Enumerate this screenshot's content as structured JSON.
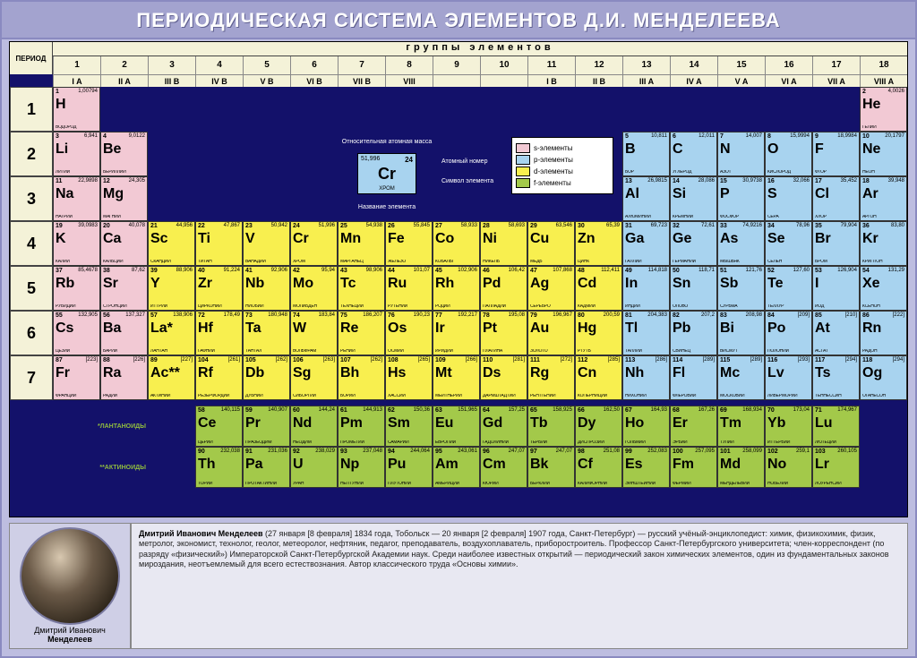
{
  "title": "ПЕРИОДИЧЕСКАЯ СИСТЕМА ЭЛЕМЕНТОВ Д.И. МЕНДЕЛЕЕВА",
  "groups_label": "группы элементов",
  "period_label": "ПЕРИОД",
  "colors": {
    "s": "#f2c9d4",
    "p": "#a8d3ef",
    "d": "#f8ef4f",
    "f": "#a3c94a",
    "bg_navy": "#13116a",
    "header_cream": "#f4f2d8",
    "frame_lilac": "#bdbde0"
  },
  "column_numbers": [
    "1",
    "2",
    "3",
    "4",
    "5",
    "6",
    "7",
    "8",
    "9",
    "10",
    "11",
    "12",
    "13",
    "14",
    "15",
    "16",
    "17",
    "18"
  ],
  "roman_headers": {
    "1": "I A",
    "2": "II A",
    "3": "III B",
    "4": "IV B",
    "5": "V B",
    "6": "VI B",
    "7": "VII B",
    "8": "VIII",
    "9": "",
    "10": "",
    "11": "I B",
    "12": "II B",
    "13": "III A",
    "14": "IV A",
    "15": "V A",
    "16": "VI A",
    "17": "VII A",
    "18": "VIII A"
  },
  "roman_row": {
    "1": 1,
    "2": 1,
    "3": 3,
    "4": 3,
    "5": 3,
    "6": 3,
    "7": 3,
    "8": 3,
    "9": 3,
    "10": 3,
    "11": 3,
    "12": 3,
    "13": 2,
    "14": 2,
    "15": 2,
    "16": 2,
    "17": 2,
    "18": 1
  },
  "periods": [
    "1",
    "2",
    "3",
    "4",
    "5",
    "6",
    "7"
  ],
  "legend_key": {
    "mass_label": "Относительная атомная масса",
    "num_label": "Атомный номер",
    "sym_label": "Символ элемента",
    "name_label": "Название элемента",
    "demo": {
      "num": "24",
      "mass": "51,996",
      "sym": "Cr",
      "name": "ХРОМ"
    }
  },
  "legend_blocks": [
    {
      "label": "s-элементы",
      "block": "s"
    },
    {
      "label": "p-элементы",
      "block": "p"
    },
    {
      "label": "d-элементы",
      "block": "d"
    },
    {
      "label": "f-элементы",
      "block": "f"
    }
  ],
  "f_labels": {
    "lan": "*ЛАНТАНОИДЫ",
    "act": "**АКТИНОИДЫ"
  },
  "elements": [
    {
      "p": 1,
      "g": 1,
      "n": "1",
      "m": "1,00794",
      "s": "H",
      "name": "ВОДОРОД",
      "b": "s"
    },
    {
      "p": 1,
      "g": 18,
      "n": "2",
      "m": "4,0026",
      "s": "He",
      "name": "ГЕЛИЙ",
      "b": "s"
    },
    {
      "p": 2,
      "g": 1,
      "n": "3",
      "m": "6,941",
      "s": "Li",
      "name": "ЛИТИЙ",
      "b": "s"
    },
    {
      "p": 2,
      "g": 2,
      "n": "4",
      "m": "9,0122",
      "s": "Be",
      "name": "БЕРИЛЛИЙ",
      "b": "s"
    },
    {
      "p": 2,
      "g": 13,
      "n": "5",
      "m": "10,811",
      "s": "B",
      "name": "БОР",
      "b": "p"
    },
    {
      "p": 2,
      "g": 14,
      "n": "6",
      "m": "12,011",
      "s": "C",
      "name": "УГЛЕРОД",
      "b": "p"
    },
    {
      "p": 2,
      "g": 15,
      "n": "7",
      "m": "14,007",
      "s": "N",
      "name": "АЗОТ",
      "b": "p"
    },
    {
      "p": 2,
      "g": 16,
      "n": "8",
      "m": "15,9994",
      "s": "O",
      "name": "КИСЛОРОД",
      "b": "p"
    },
    {
      "p": 2,
      "g": 17,
      "n": "9",
      "m": "18,9984",
      "s": "F",
      "name": "ФТОР",
      "b": "p"
    },
    {
      "p": 2,
      "g": 18,
      "n": "10",
      "m": "20,1797",
      "s": "Ne",
      "name": "НЕОН",
      "b": "p"
    },
    {
      "p": 3,
      "g": 1,
      "n": "11",
      "m": "22,9898",
      "s": "Na",
      "name": "НАТРИЙ",
      "b": "s"
    },
    {
      "p": 3,
      "g": 2,
      "n": "12",
      "m": "24,305",
      "s": "Mg",
      "name": "МАГНИЙ",
      "b": "s"
    },
    {
      "p": 3,
      "g": 13,
      "n": "13",
      "m": "26,9815",
      "s": "Al",
      "name": "АЛЮМИНИЙ",
      "b": "p"
    },
    {
      "p": 3,
      "g": 14,
      "n": "14",
      "m": "28,086",
      "s": "Si",
      "name": "КРЕМНИЙ",
      "b": "p"
    },
    {
      "p": 3,
      "g": 15,
      "n": "15",
      "m": "30,9738",
      "s": "P",
      "name": "ФОСФОР",
      "b": "p"
    },
    {
      "p": 3,
      "g": 16,
      "n": "16",
      "m": "32,066",
      "s": "S",
      "name": "СЕРА",
      "b": "p"
    },
    {
      "p": 3,
      "g": 17,
      "n": "17",
      "m": "35,452",
      "s": "Cl",
      "name": "ХЛОР",
      "b": "p"
    },
    {
      "p": 3,
      "g": 18,
      "n": "18",
      "m": "39,948",
      "s": "Ar",
      "name": "АРГОН",
      "b": "p"
    },
    {
      "p": 4,
      "g": 1,
      "n": "19",
      "m": "39,0983",
      "s": "K",
      "name": "КАЛИЙ",
      "b": "s"
    },
    {
      "p": 4,
      "g": 2,
      "n": "20",
      "m": "40,078",
      "s": "Ca",
      "name": "КАЛЬЦИЙ",
      "b": "s"
    },
    {
      "p": 4,
      "g": 3,
      "n": "21",
      "m": "44,956",
      "s": "Sc",
      "name": "СКАНДИЙ",
      "b": "d"
    },
    {
      "p": 4,
      "g": 4,
      "n": "22",
      "m": "47,867",
      "s": "Ti",
      "name": "ТИТАН",
      "b": "d"
    },
    {
      "p": 4,
      "g": 5,
      "n": "23",
      "m": "50,942",
      "s": "V",
      "name": "ВАНАДИЙ",
      "b": "d"
    },
    {
      "p": 4,
      "g": 6,
      "n": "24",
      "m": "51,996",
      "s": "Cr",
      "name": "ХРОМ",
      "b": "d"
    },
    {
      "p": 4,
      "g": 7,
      "n": "25",
      "m": "54,938",
      "s": "Mn",
      "name": "МАРГАНЕЦ",
      "b": "d"
    },
    {
      "p": 4,
      "g": 8,
      "n": "26",
      "m": "55,845",
      "s": "Fe",
      "name": "ЖЕЛЕЗО",
      "b": "d"
    },
    {
      "p": 4,
      "g": 9,
      "n": "27",
      "m": "58,933",
      "s": "Co",
      "name": "КОБАЛЬТ",
      "b": "d"
    },
    {
      "p": 4,
      "g": 10,
      "n": "28",
      "m": "58,693",
      "s": "Ni",
      "name": "НИКЕЛЬ",
      "b": "d"
    },
    {
      "p": 4,
      "g": 11,
      "n": "29",
      "m": "63,546",
      "s": "Cu",
      "name": "МЕДЬ",
      "b": "d"
    },
    {
      "p": 4,
      "g": 12,
      "n": "30",
      "m": "65,39",
      "s": "Zn",
      "name": "ЦИНК",
      "b": "d"
    },
    {
      "p": 4,
      "g": 13,
      "n": "31",
      "m": "69,723",
      "s": "Ga",
      "name": "ГАЛЛИЙ",
      "b": "p"
    },
    {
      "p": 4,
      "g": 14,
      "n": "32",
      "m": "72,61",
      "s": "Ge",
      "name": "ГЕРМАНИЙ",
      "b": "p"
    },
    {
      "p": 4,
      "g": 15,
      "n": "33",
      "m": "74,9216",
      "s": "As",
      "name": "МЫШЬЯК",
      "b": "p"
    },
    {
      "p": 4,
      "g": 16,
      "n": "34",
      "m": "78,96",
      "s": "Se",
      "name": "СЕЛЕН",
      "b": "p"
    },
    {
      "p": 4,
      "g": 17,
      "n": "35",
      "m": "79,904",
      "s": "Br",
      "name": "БРОМ",
      "b": "p"
    },
    {
      "p": 4,
      "g": 18,
      "n": "36",
      "m": "83,80",
      "s": "Kr",
      "name": "КРИПТОН",
      "b": "p"
    },
    {
      "p": 5,
      "g": 1,
      "n": "37",
      "m": "85,4678",
      "s": "Rb",
      "name": "РУБИДИЙ",
      "b": "s"
    },
    {
      "p": 5,
      "g": 2,
      "n": "38",
      "m": "87,62",
      "s": "Sr",
      "name": "СТРОНЦИЙ",
      "b": "s"
    },
    {
      "p": 5,
      "g": 3,
      "n": "39",
      "m": "88,906",
      "s": "Y",
      "name": "ИТТРИЙ",
      "b": "d"
    },
    {
      "p": 5,
      "g": 4,
      "n": "40",
      "m": "91,224",
      "s": "Zr",
      "name": "ЦИРКОНИЙ",
      "b": "d"
    },
    {
      "p": 5,
      "g": 5,
      "n": "41",
      "m": "92,906",
      "s": "Nb",
      "name": "НИОБИЙ",
      "b": "d"
    },
    {
      "p": 5,
      "g": 6,
      "n": "42",
      "m": "95,94",
      "s": "Mo",
      "name": "МОЛИБДЕН",
      "b": "d"
    },
    {
      "p": 5,
      "g": 7,
      "n": "43",
      "m": "98,906",
      "s": "Tc",
      "name": "ТЕХНЕЦИЙ",
      "b": "d"
    },
    {
      "p": 5,
      "g": 8,
      "n": "44",
      "m": "101,07",
      "s": "Ru",
      "name": "РУТЕНИЙ",
      "b": "d"
    },
    {
      "p": 5,
      "g": 9,
      "n": "45",
      "m": "102,906",
      "s": "Rh",
      "name": "РОДИЙ",
      "b": "d"
    },
    {
      "p": 5,
      "g": 10,
      "n": "46",
      "m": "106,42",
      "s": "Pd",
      "name": "ПАЛЛАДИЙ",
      "b": "d"
    },
    {
      "p": 5,
      "g": 11,
      "n": "47",
      "m": "107,868",
      "s": "Ag",
      "name": "СЕРЕБРО",
      "b": "d"
    },
    {
      "p": 5,
      "g": 12,
      "n": "48",
      "m": "112,411",
      "s": "Cd",
      "name": "КАДМИЙ",
      "b": "d"
    },
    {
      "p": 5,
      "g": 13,
      "n": "49",
      "m": "114,818",
      "s": "In",
      "name": "ИНДИЙ",
      "b": "p"
    },
    {
      "p": 5,
      "g": 14,
      "n": "50",
      "m": "118,71",
      "s": "Sn",
      "name": "ОЛОВО",
      "b": "p"
    },
    {
      "p": 5,
      "g": 15,
      "n": "51",
      "m": "121,76",
      "s": "Sb",
      "name": "СУРЬМА",
      "b": "p"
    },
    {
      "p": 5,
      "g": 16,
      "n": "52",
      "m": "127,60",
      "s": "Te",
      "name": "ТЕЛЛУР",
      "b": "p"
    },
    {
      "p": 5,
      "g": 17,
      "n": "53",
      "m": "126,904",
      "s": "I",
      "name": "ИОД",
      "b": "p"
    },
    {
      "p": 5,
      "g": 18,
      "n": "54",
      "m": "131,29",
      "s": "Xe",
      "name": "КСЕНОН",
      "b": "p"
    },
    {
      "p": 6,
      "g": 1,
      "n": "55",
      "m": "132,905",
      "s": "Cs",
      "name": "ЦЕЗИЙ",
      "b": "s"
    },
    {
      "p": 6,
      "g": 2,
      "n": "56",
      "m": "137,327",
      "s": "Ba",
      "name": "БАРИЙ",
      "b": "s"
    },
    {
      "p": 6,
      "g": 3,
      "n": "57",
      "m": "138,906",
      "s": "La*",
      "name": "ЛАНТАН",
      "b": "d"
    },
    {
      "p": 6,
      "g": 4,
      "n": "72",
      "m": "178,49",
      "s": "Hf",
      "name": "ГАФНИЙ",
      "b": "d"
    },
    {
      "p": 6,
      "g": 5,
      "n": "73",
      "m": "180,948",
      "s": "Ta",
      "name": "ТАНТАЛ",
      "b": "d"
    },
    {
      "p": 6,
      "g": 6,
      "n": "74",
      "m": "183,84",
      "s": "W",
      "name": "ВОЛЬФРАМ",
      "b": "d"
    },
    {
      "p": 6,
      "g": 7,
      "n": "75",
      "m": "186,207",
      "s": "Re",
      "name": "РЕНИЙ",
      "b": "d"
    },
    {
      "p": 6,
      "g": 8,
      "n": "76",
      "m": "190,23",
      "s": "Os",
      "name": "ОСМИЙ",
      "b": "d"
    },
    {
      "p": 6,
      "g": 9,
      "n": "77",
      "m": "192,217",
      "s": "Ir",
      "name": "ИРИДИЙ",
      "b": "d"
    },
    {
      "p": 6,
      "g": 10,
      "n": "78",
      "m": "195,08",
      "s": "Pt",
      "name": "ПЛАТИНА",
      "b": "d"
    },
    {
      "p": 6,
      "g": 11,
      "n": "79",
      "m": "196,967",
      "s": "Au",
      "name": "ЗОЛОТО",
      "b": "d"
    },
    {
      "p": 6,
      "g": 12,
      "n": "80",
      "m": "200,59",
      "s": "Hg",
      "name": "РТУТЬ",
      "b": "d"
    },
    {
      "p": 6,
      "g": 13,
      "n": "81",
      "m": "204,383",
      "s": "Tl",
      "name": "ТАЛЛИЙ",
      "b": "p"
    },
    {
      "p": 6,
      "g": 14,
      "n": "82",
      "m": "207,2",
      "s": "Pb",
      "name": "СВИНЕЦ",
      "b": "p"
    },
    {
      "p": 6,
      "g": 15,
      "n": "83",
      "m": "208,98",
      "s": "Bi",
      "name": "ВИСМУТ",
      "b": "p"
    },
    {
      "p": 6,
      "g": 16,
      "n": "84",
      "m": "[209]",
      "s": "Po",
      "name": "ПОЛОНИЙ",
      "b": "p"
    },
    {
      "p": 6,
      "g": 17,
      "n": "85",
      "m": "[210]",
      "s": "At",
      "name": "АСТАТ",
      "b": "p"
    },
    {
      "p": 6,
      "g": 18,
      "n": "86",
      "m": "[222]",
      "s": "Rn",
      "name": "РАДОН",
      "b": "p"
    },
    {
      "p": 7,
      "g": 1,
      "n": "87",
      "m": "[223]",
      "s": "Fr",
      "name": "ФРАНЦИЙ",
      "b": "s"
    },
    {
      "p": 7,
      "g": 2,
      "n": "88",
      "m": "[226]",
      "s": "Ra",
      "name": "РАДИЙ",
      "b": "s"
    },
    {
      "p": 7,
      "g": 3,
      "n": "89",
      "m": "[227]",
      "s": "Ac**",
      "name": "АКТИНИЙ",
      "b": "d"
    },
    {
      "p": 7,
      "g": 4,
      "n": "104",
      "m": "[261]",
      "s": "Rf",
      "name": "РЕЗЕРФОРДИЙ",
      "b": "d"
    },
    {
      "p": 7,
      "g": 5,
      "n": "105",
      "m": "[262]",
      "s": "Db",
      "name": "ДУБНИЙ",
      "b": "d"
    },
    {
      "p": 7,
      "g": 6,
      "n": "106",
      "m": "[263]",
      "s": "Sg",
      "name": "СИБОРГИЙ",
      "b": "d"
    },
    {
      "p": 7,
      "g": 7,
      "n": "107",
      "m": "[262]",
      "s": "Bh",
      "name": "БОРИЙ",
      "b": "d"
    },
    {
      "p": 7,
      "g": 8,
      "n": "108",
      "m": "[265]",
      "s": "Hs",
      "name": "ХАССИЙ",
      "b": "d"
    },
    {
      "p": 7,
      "g": 9,
      "n": "109",
      "m": "[266]",
      "s": "Mt",
      "name": "МЕЙТНЕРИЙ",
      "b": "d"
    },
    {
      "p": 7,
      "g": 10,
      "n": "110",
      "m": "[281]",
      "s": "Ds",
      "name": "ДАРМШТАДТИЙ",
      "b": "d"
    },
    {
      "p": 7,
      "g": 11,
      "n": "111",
      "m": "[272]",
      "s": "Rg",
      "name": "РЕНТГЕНИЙ",
      "b": "d"
    },
    {
      "p": 7,
      "g": 12,
      "n": "112",
      "m": "[285]",
      "s": "Cn",
      "name": "КОПЕРНИЦИЙ",
      "b": "d"
    },
    {
      "p": 7,
      "g": 13,
      "n": "113",
      "m": "[286]",
      "s": "Nh",
      "name": "НИХОНИЙ",
      "b": "p"
    },
    {
      "p": 7,
      "g": 14,
      "n": "114",
      "m": "[289]",
      "s": "Fl",
      "name": "ФЛЕРОВИЙ",
      "b": "p"
    },
    {
      "p": 7,
      "g": 15,
      "n": "115",
      "m": "[289]",
      "s": "Mc",
      "name": "МОСКОВИЙ",
      "b": "p"
    },
    {
      "p": 7,
      "g": 16,
      "n": "116",
      "m": "[293]",
      "s": "Lv",
      "name": "ЛИВЕРМОРИЙ",
      "b": "p"
    },
    {
      "p": 7,
      "g": 17,
      "n": "117",
      "m": "[294]",
      "s": "Ts",
      "name": "ТЕННЕССИН",
      "b": "p"
    },
    {
      "p": 7,
      "g": 18,
      "n": "118",
      "m": "[294]",
      "s": "Og",
      "name": "ОГАНЕСОН",
      "b": "p"
    }
  ],
  "lanthanides": [
    {
      "n": "58",
      "m": "140,115",
      "s": "Ce",
      "name": "ЦЕРИЙ"
    },
    {
      "n": "59",
      "m": "140,907",
      "s": "Pr",
      "name": "ПРАЗЕОДИМ"
    },
    {
      "n": "60",
      "m": "144,24",
      "s": "Nd",
      "name": "НЕОДИМ"
    },
    {
      "n": "61",
      "m": "144,913",
      "s": "Pm",
      "name": "ПРОМЕТИЙ"
    },
    {
      "n": "62",
      "m": "150,36",
      "s": "Sm",
      "name": "САМАРИЙ"
    },
    {
      "n": "63",
      "m": "151,965",
      "s": "Eu",
      "name": "ЕВРОПИЙ"
    },
    {
      "n": "64",
      "m": "157,25",
      "s": "Gd",
      "name": "ГАДОЛИНИЙ"
    },
    {
      "n": "65",
      "m": "158,925",
      "s": "Tb",
      "name": "ТЕРБИЙ"
    },
    {
      "n": "66",
      "m": "162,50",
      "s": "Dy",
      "name": "ДИСПРОЗИЙ"
    },
    {
      "n": "67",
      "m": "164,93",
      "s": "Ho",
      "name": "ГОЛЬМИЙ"
    },
    {
      "n": "68",
      "m": "167,26",
      "s": "Er",
      "name": "ЭРБИЙ"
    },
    {
      "n": "69",
      "m": "168,934",
      "s": "Tm",
      "name": "ТУЛИЙ"
    },
    {
      "n": "70",
      "m": "173,04",
      "s": "Yb",
      "name": "ИТТЕРБИЙ"
    },
    {
      "n": "71",
      "m": "174,967",
      "s": "Lu",
      "name": "ЛЮТЕЦИЙ"
    }
  ],
  "actinides": [
    {
      "n": "90",
      "m": "232,038",
      "s": "Th",
      "name": "ТОРИЙ"
    },
    {
      "n": "91",
      "m": "231,036",
      "s": "Pa",
      "name": "ПРОТАКТИНИЙ"
    },
    {
      "n": "92",
      "m": "238,029",
      "s": "U",
      "name": "УРАН"
    },
    {
      "n": "93",
      "m": "237,048",
      "s": "Np",
      "name": "НЕПТУНИЙ"
    },
    {
      "n": "94",
      "m": "244,064",
      "s": "Pu",
      "name": "ПЛУТОНИЙ"
    },
    {
      "n": "95",
      "m": "243,061",
      "s": "Am",
      "name": "АМЕРИЦИЙ"
    },
    {
      "n": "96",
      "m": "247,07",
      "s": "Cm",
      "name": "КЮРИЙ"
    },
    {
      "n": "97",
      "m": "247,07",
      "s": "Bk",
      "name": "БЕРКЛИЙ"
    },
    {
      "n": "98",
      "m": "251,08",
      "s": "Cf",
      "name": "КАЛИФОРНИЙ"
    },
    {
      "n": "99",
      "m": "252,083",
      "s": "Es",
      "name": "ЭЙНШТЕЙНИЙ"
    },
    {
      "n": "100",
      "m": "257,095",
      "s": "Fm",
      "name": "ФЕРМИЙ"
    },
    {
      "n": "101",
      "m": "258,099",
      "s": "Md",
      "name": "МЕНДЕЛЕВИЙ"
    },
    {
      "n": "102",
      "m": "259,1",
      "s": "No",
      "name": "НОБЕЛИЙ"
    },
    {
      "n": "103",
      "m": "260,105",
      "s": "Lr",
      "name": "ЛОУРЕНСИЙ"
    }
  ],
  "portrait": {
    "caption_line1": "Дмитрий Иванович",
    "caption_line2": "Менделеев"
  },
  "bio": {
    "bold": "Дмитрий Иванович Менделеев",
    "text": " (27 января [8 февраля] 1834 года, Тобольск — 20 января [2 февраля] 1907 года, Санкт-Петербург) — русский учёный-энциклопедист: химик, физикохимик, физик, метролог, экономист, технолог, геолог, метеоролог, нефтяник, педагог, преподаватель, воздухоплаватель, приборостроитель. Профессор Санкт-Петербургского университета; член-корреспондент (по разряду «физический») Императорской Санкт-Петербургской Академии наук. Среди наиболее известных открытий — периодический закон химических элементов, один из фундаментальных законов мироздания, неотъемлемый для всего естествознания. Автор классического труда «Основы химии»."
  }
}
